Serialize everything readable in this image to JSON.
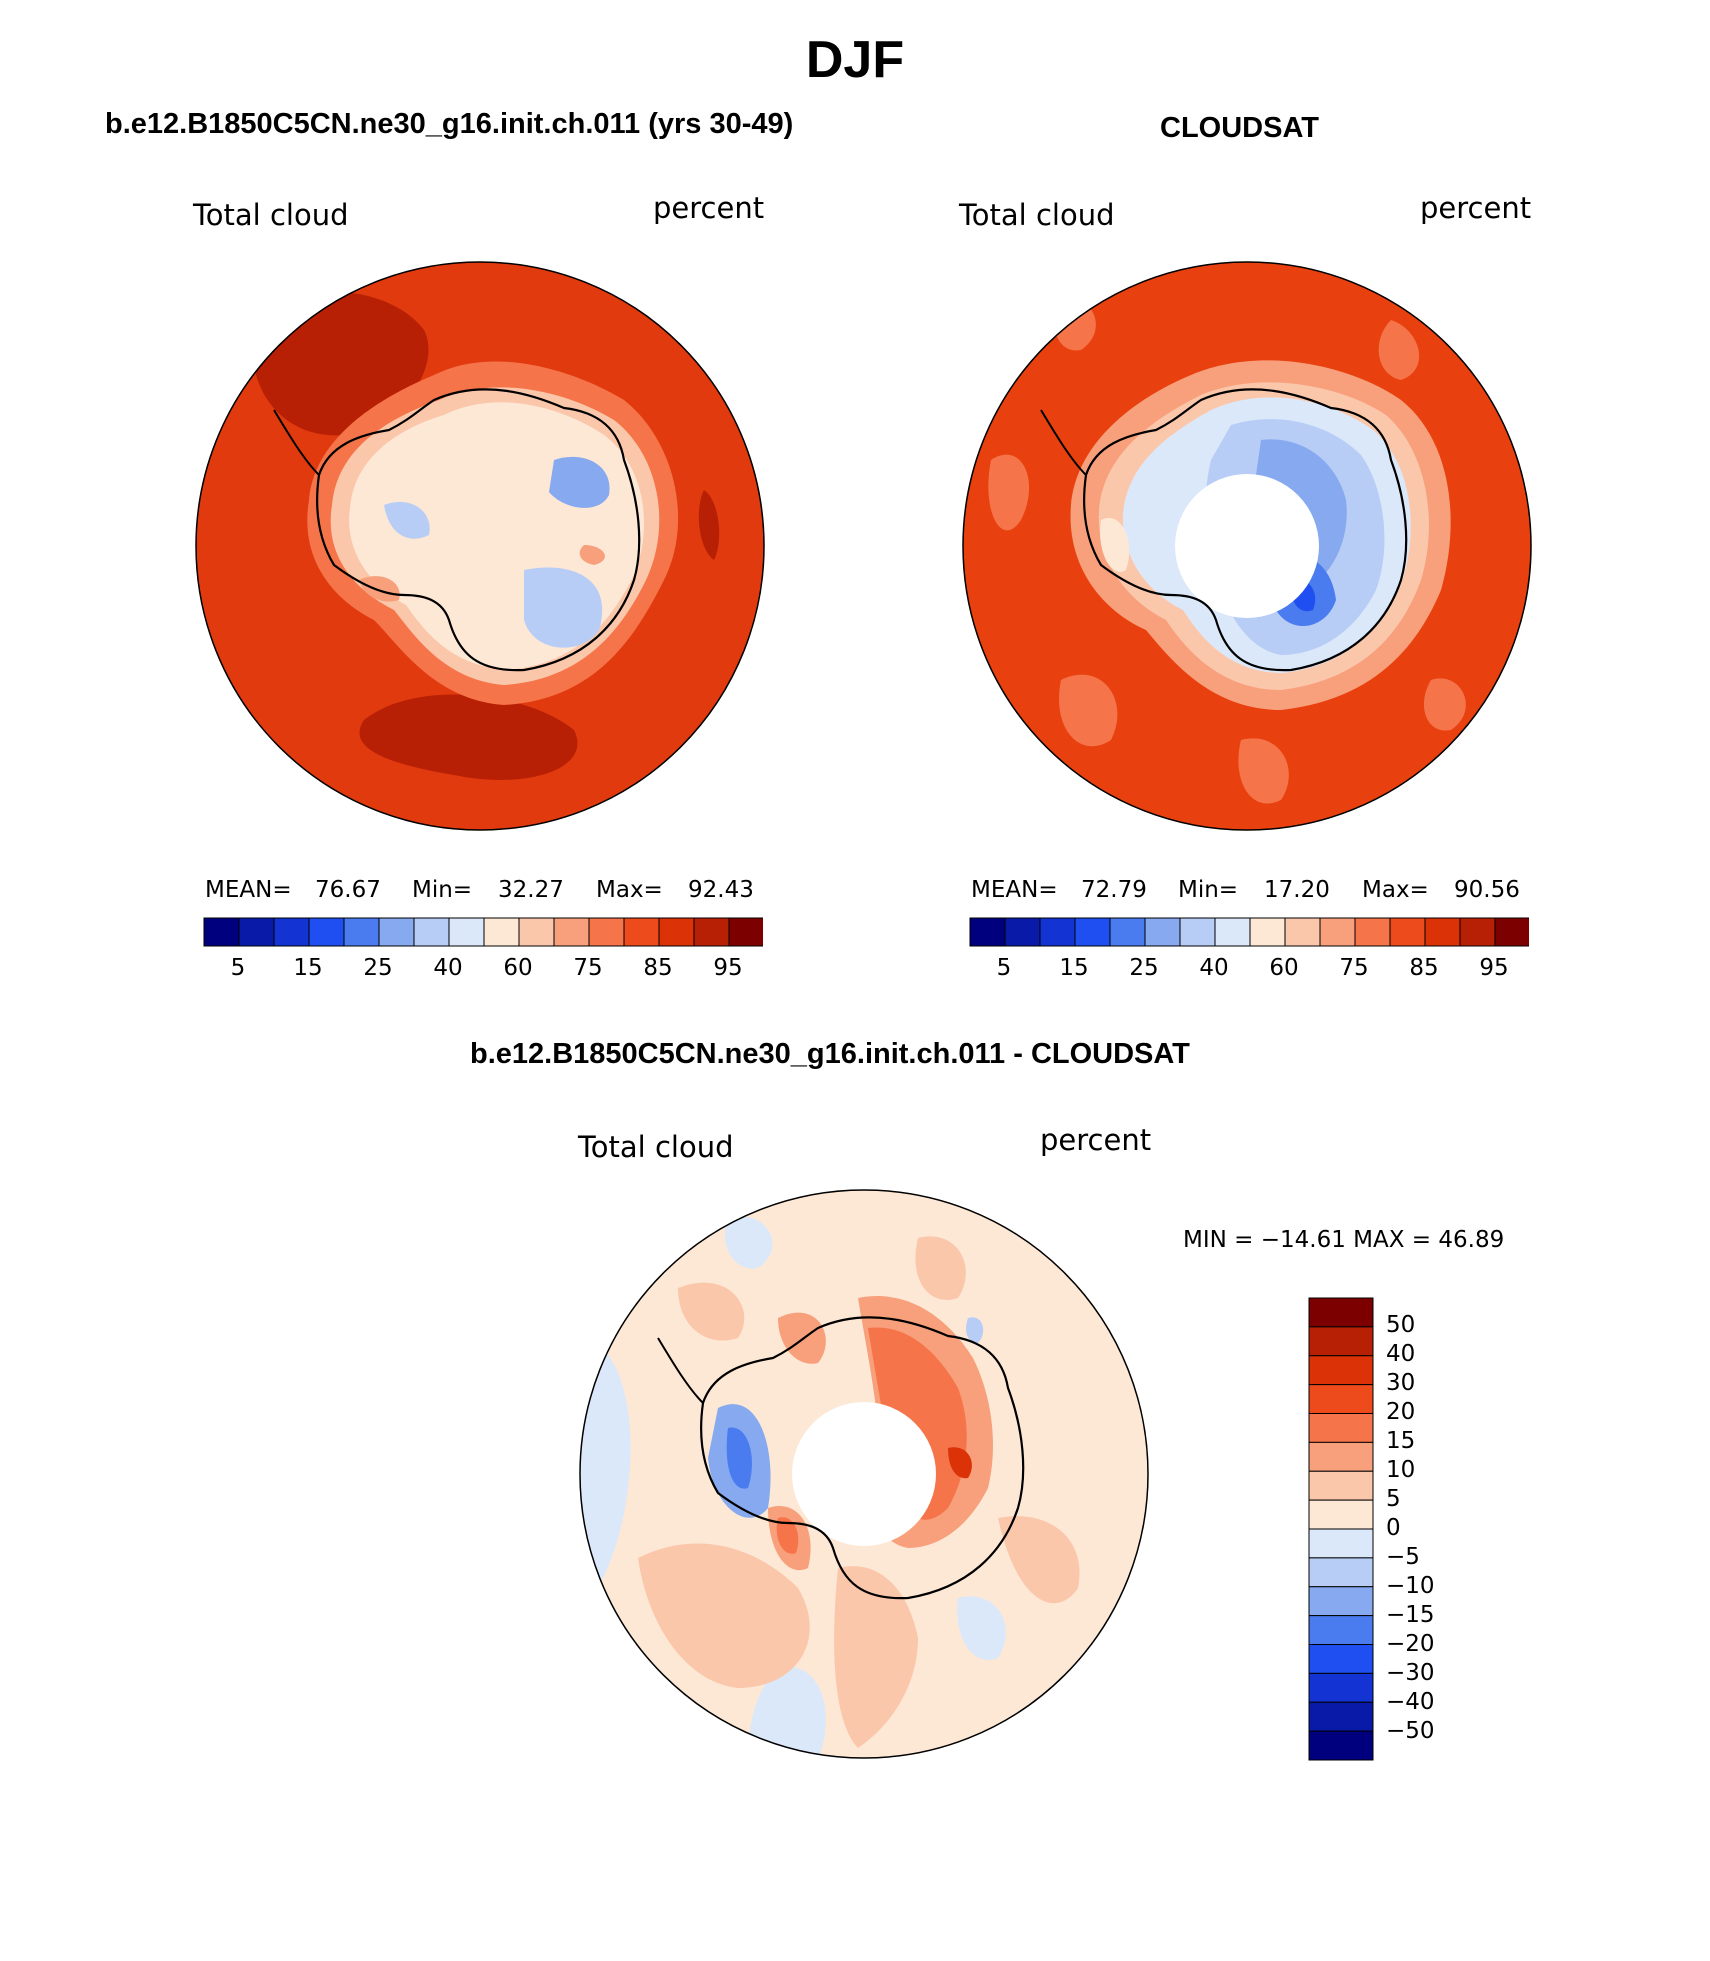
{
  "main_title": "DJF",
  "panels": [
    {
      "title": "b.e12.B1850C5CN.ne30_g16.init.ch.011 (yrs 30-49)",
      "left_label": "Total cloud",
      "right_label": "percent",
      "stats": {
        "mean_label": "MEAN=",
        "mean": "76.67",
        "min_label": "Min=",
        "min": "32.27",
        "max_label": "Max=",
        "max": "92.43"
      }
    },
    {
      "title": "CLOUDSAT",
      "left_label": "Total cloud",
      "right_label": "percent",
      "stats": {
        "mean_label": "MEAN=",
        "mean": "72.79",
        "min_label": "Min=",
        "min": "17.20",
        "max_label": "Max=",
        "max": "90.56"
      }
    },
    {
      "title": "b.e12.B1850C5CN.ne30_g16.init.ch.011 - CLOUDSAT",
      "left_label": "Total cloud",
      "right_label": "percent",
      "stats_text": "MIN = −14.61 MAX =   46.89"
    }
  ],
  "colorbar_abs": {
    "colors": [
      "#00007f",
      "#0a1aa8",
      "#1433d3",
      "#1f4ff0",
      "#4a7bef",
      "#86a9f0",
      "#b7cdf6",
      "#dbe8fa",
      "#fde8d6",
      "#fbc7ab",
      "#f8a07c",
      "#f57449",
      "#ee4b1d",
      "#db3208",
      "#b82005",
      "#7d0000"
    ],
    "tick_labels": [
      "5",
      "15",
      "25",
      "40",
      "60",
      "75",
      "85",
      "95"
    ]
  },
  "colorbar_diff": {
    "colors": [
      "#00007f",
      "#0a1aa8",
      "#1433d3",
      "#1f4ff0",
      "#4a7bef",
      "#86a9f0",
      "#b7cdf6",
      "#dbe8fa",
      "#fde8d6",
      "#fbc7ab",
      "#f8a07c",
      "#f57449",
      "#ee4b1d",
      "#db3208",
      "#b82005",
      "#7d0000"
    ],
    "tick_labels": [
      "50",
      "40",
      "30",
      "20",
      "15",
      "10",
      "5",
      "0",
      "−5",
      "−10",
      "−15",
      "−20",
      "−30",
      "−40",
      "−50"
    ]
  },
  "colors": {
    "model_ocean": "#e03a0e",
    "model_dark": "#b82005",
    "model_ring": "#f57449",
    "obs_ocean": "#e8410f",
    "obs_patch": "#f57449",
    "diff_base": "#fde8d6",
    "diff_pos": "#f8a07c",
    "diff_neg": "#b7cdf6",
    "land_light": "#fde8d6",
    "coast": "#000000"
  }
}
